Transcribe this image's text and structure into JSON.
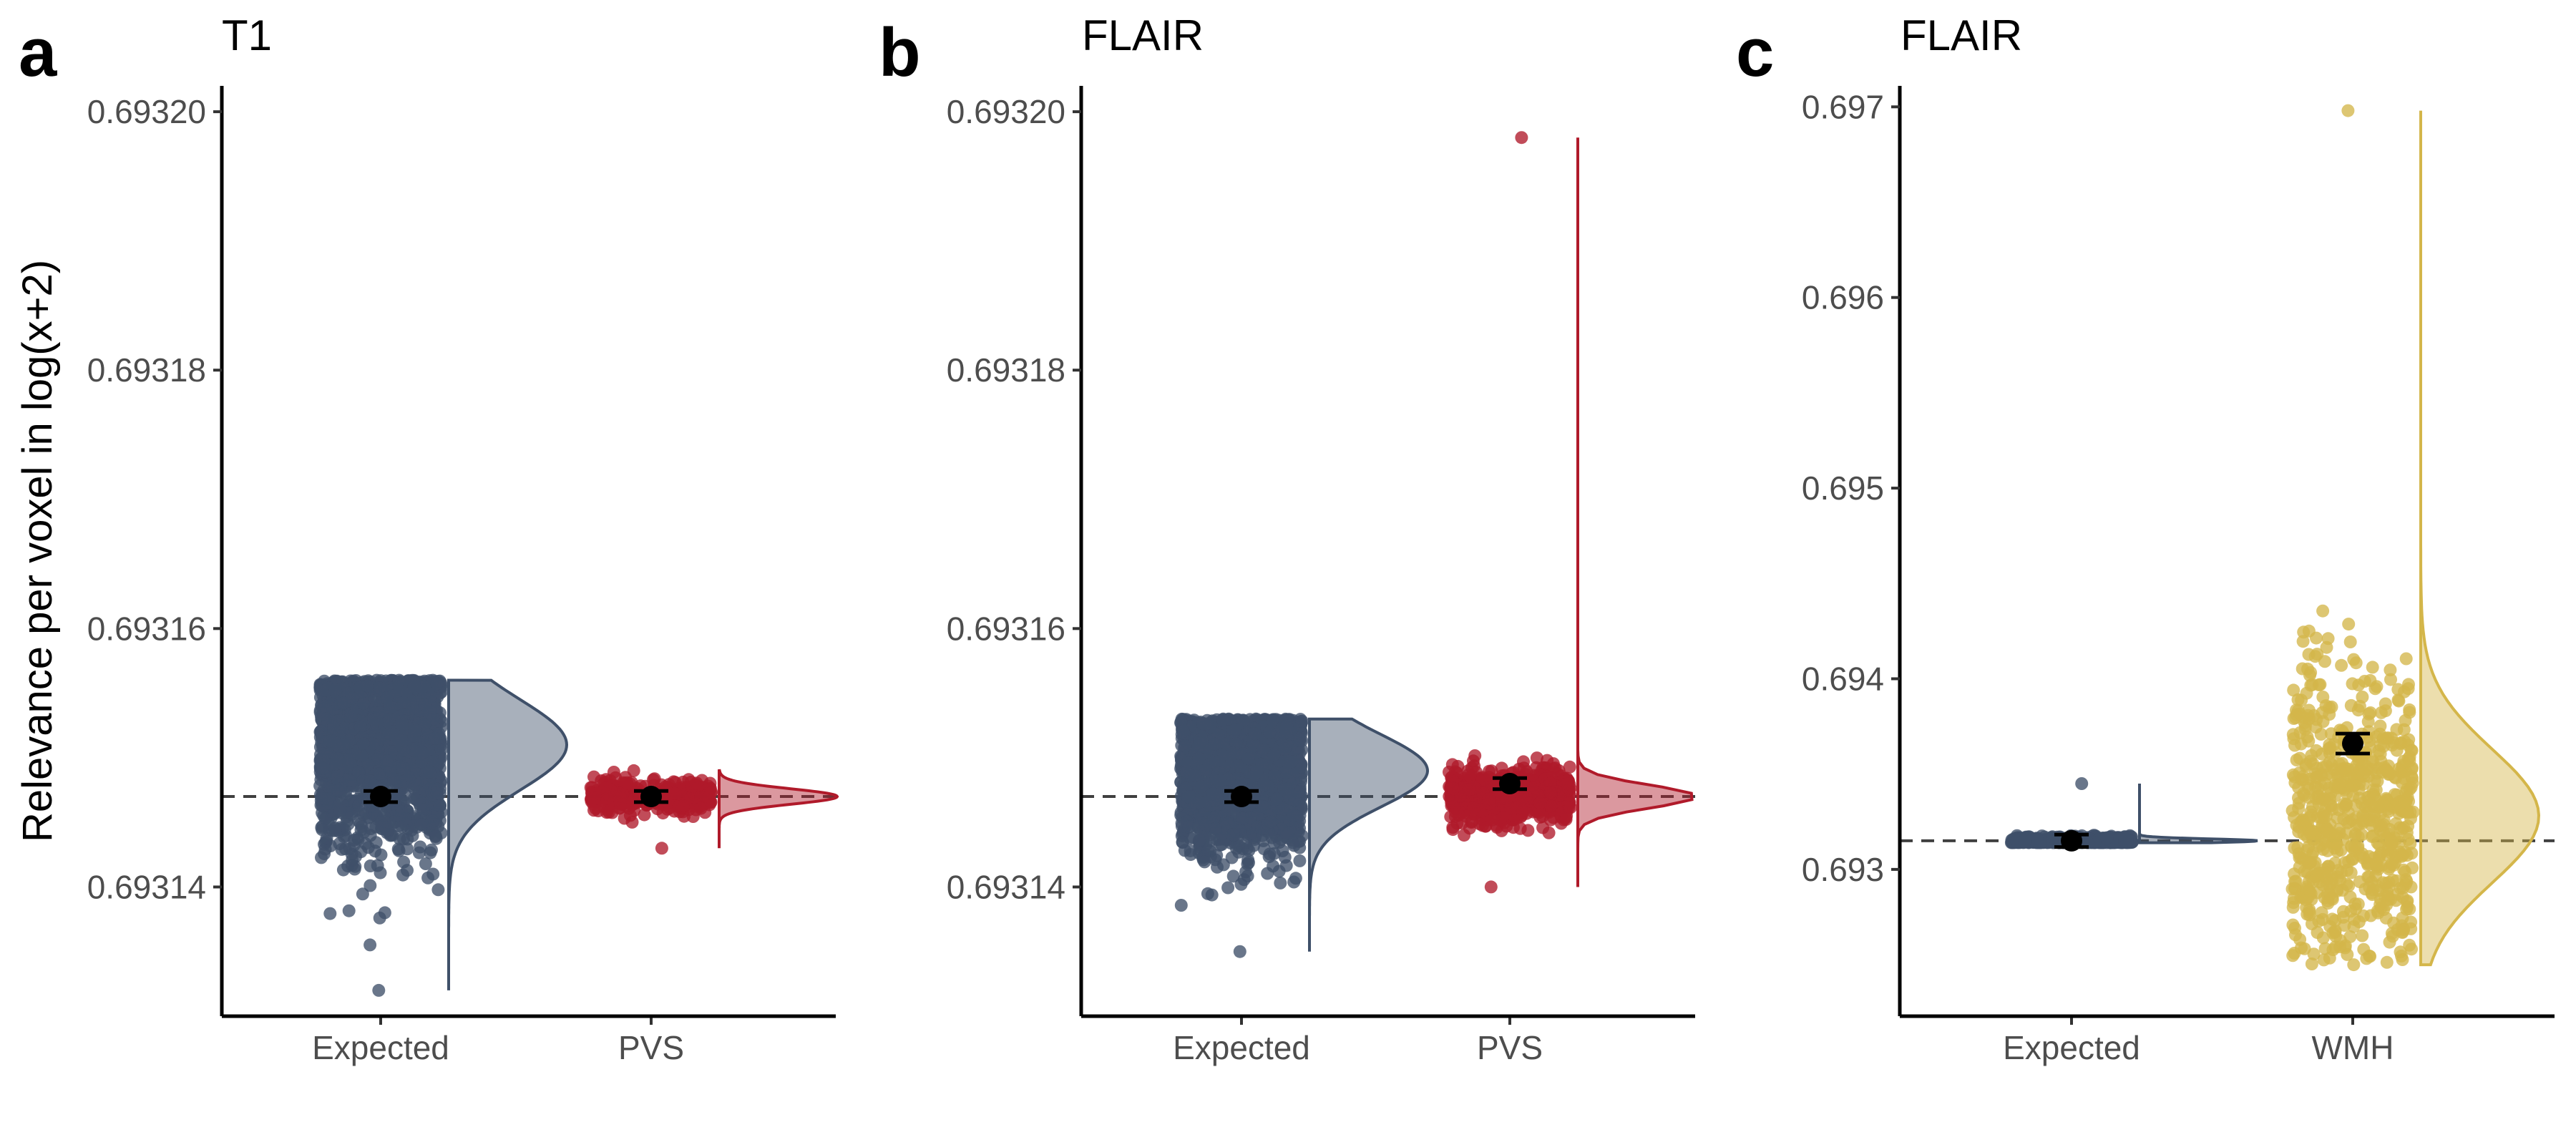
{
  "ylabel": "Relevance per voxel in log(x+2)",
  "colors": {
    "expected": "#3F5069",
    "pvs": "#B01A2A",
    "wmh": "#D4B64A",
    "mean_point": "#000000",
    "reference_line": "#404040"
  },
  "chart_data": [
    {
      "type": "scatter",
      "panel_letter": "a",
      "title": "T1",
      "categories": [
        "Expected",
        "PVS"
      ],
      "ylim": [
        0.69313,
        0.693202
      ],
      "yticks": [
        0.69314,
        0.69316,
        0.69318,
        0.6932
      ],
      "ytick_labels": [
        "0.69314",
        "0.69316",
        "0.69318",
        "0.69320"
      ],
      "reference_line": 0.693147,
      "series": [
        {
          "category": "Expected",
          "color_key": "expected",
          "mean": 0.693147,
          "se": 1e-07,
          "n_points": 1800,
          "min": 0.693132,
          "max": 0.693156,
          "density_peak": 0.693151,
          "density_sd": 3.5e-06
        },
        {
          "category": "PVS",
          "color_key": "pvs",
          "mean": 0.693147,
          "se": 1e-07,
          "n_points": 300,
          "min": 0.693143,
          "max": 0.693149,
          "density_peak": 0.693147,
          "density_sd": 6e-07
        }
      ]
    },
    {
      "type": "scatter",
      "panel_letter": "b",
      "title": "FLAIR",
      "categories": [
        "Expected",
        "PVS"
      ],
      "ylim": [
        0.69313,
        0.693202
      ],
      "yticks": [
        0.69314,
        0.69316,
        0.69318,
        0.6932
      ],
      "ytick_labels": [
        "0.69314",
        "0.69316",
        "0.69318",
        "0.69320"
      ],
      "reference_line": 0.693147,
      "series": [
        {
          "category": "Expected",
          "color_key": "expected",
          "mean": 0.693147,
          "se": 1e-07,
          "n_points": 1800,
          "min": 0.693135,
          "max": 0.693153,
          "density_peak": 0.693149,
          "density_sd": 2.8e-06
        },
        {
          "category": "PVS",
          "color_key": "pvs",
          "mean": 0.693148,
          "se": 1e-07,
          "n_points": 700,
          "min": 0.69314,
          "max": 0.693198,
          "density_peak": 0.693147,
          "density_sd": 9e-07
        }
      ]
    },
    {
      "type": "scatter",
      "panel_letter": "c",
      "title": "FLAIR",
      "categories": [
        "Expected",
        "WMH"
      ],
      "ylim": [
        0.69223,
        0.69711
      ],
      "yticks": [
        0.693,
        0.694,
        0.695,
        0.696,
        0.697
      ],
      "ytick_labels": [
        "0.693",
        "0.694",
        "0.695",
        "0.696",
        "0.697"
      ],
      "reference_line": 0.69315,
      "series": [
        {
          "category": "Expected",
          "color_key": "expected",
          "mean": 0.69315,
          "se": 1e-05,
          "n_points": 500,
          "min": 0.69314,
          "max": 0.69345,
          "density_peak": 0.69315,
          "density_sd": 1e-05
        },
        {
          "category": "WMH",
          "color_key": "wmh",
          "mean": 0.69366,
          "se": 3e-05,
          "n_points": 700,
          "min": 0.6925,
          "max": 0.69698,
          "density_peak": 0.69328,
          "density_sd": 0.00035
        }
      ]
    }
  ]
}
